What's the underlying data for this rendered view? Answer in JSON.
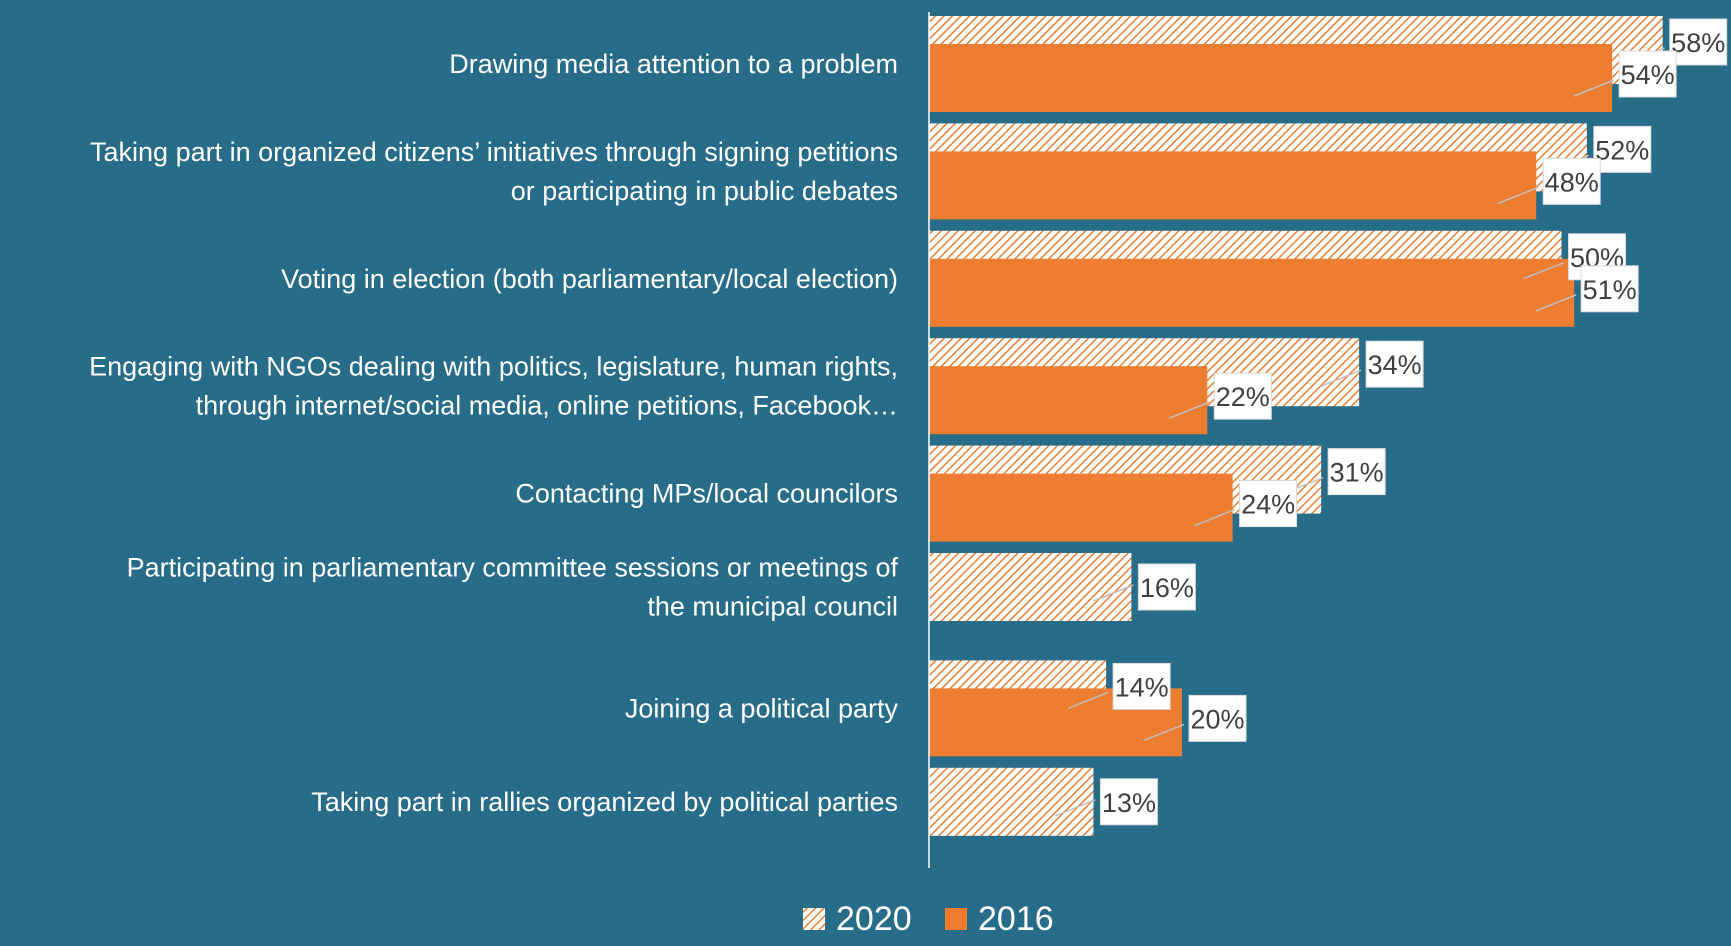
{
  "chart_data": {
    "type": "bar",
    "orientation": "horizontal",
    "categories": [
      [
        "Drawing media attention to a problem"
      ],
      [
        "Taking part in organized citizens’ initiatives through signing petitions",
        "or participating in public debates"
      ],
      [
        "Voting in election (both parliamentary/local election)"
      ],
      [
        "Engaging with NGOs dealing with politics, legislature, human rights,",
        "through internet/social media, online petitions, Facebook…"
      ],
      [
        "Contacting MPs/local councilors"
      ],
      [
        "Participating in parliamentary committee sessions  or meetings of",
        "the municipal council"
      ],
      [
        "Joining a political party"
      ],
      [
        "Taking part in rallies organized by political parties"
      ]
    ],
    "series": [
      {
        "name": "2020",
        "pattern": "hatched",
        "values": [
          58,
          52,
          50,
          34,
          31,
          16,
          14,
          13
        ],
        "labels": [
          "58%",
          "52%",
          "50%",
          "34%",
          "31%",
          "16%",
          "14%",
          "13%"
        ]
      },
      {
        "name": "2016",
        "pattern": "solid",
        "values": [
          54,
          48,
          51,
          22,
          24,
          null,
          20,
          null
        ],
        "labels": [
          "54%",
          "48%",
          "51%",
          "22%",
          "24%",
          null,
          "20%",
          null
        ]
      }
    ],
    "xlim": [
      0,
      60
    ],
    "grid": false,
    "legend_position": "bottom",
    "colors": {
      "background": "#276d8a",
      "bar": "#ed7d31",
      "label_box": "#ffffff",
      "label_text": "#404040",
      "axis": "#ffffff",
      "leader": "#bfbfbf"
    }
  }
}
